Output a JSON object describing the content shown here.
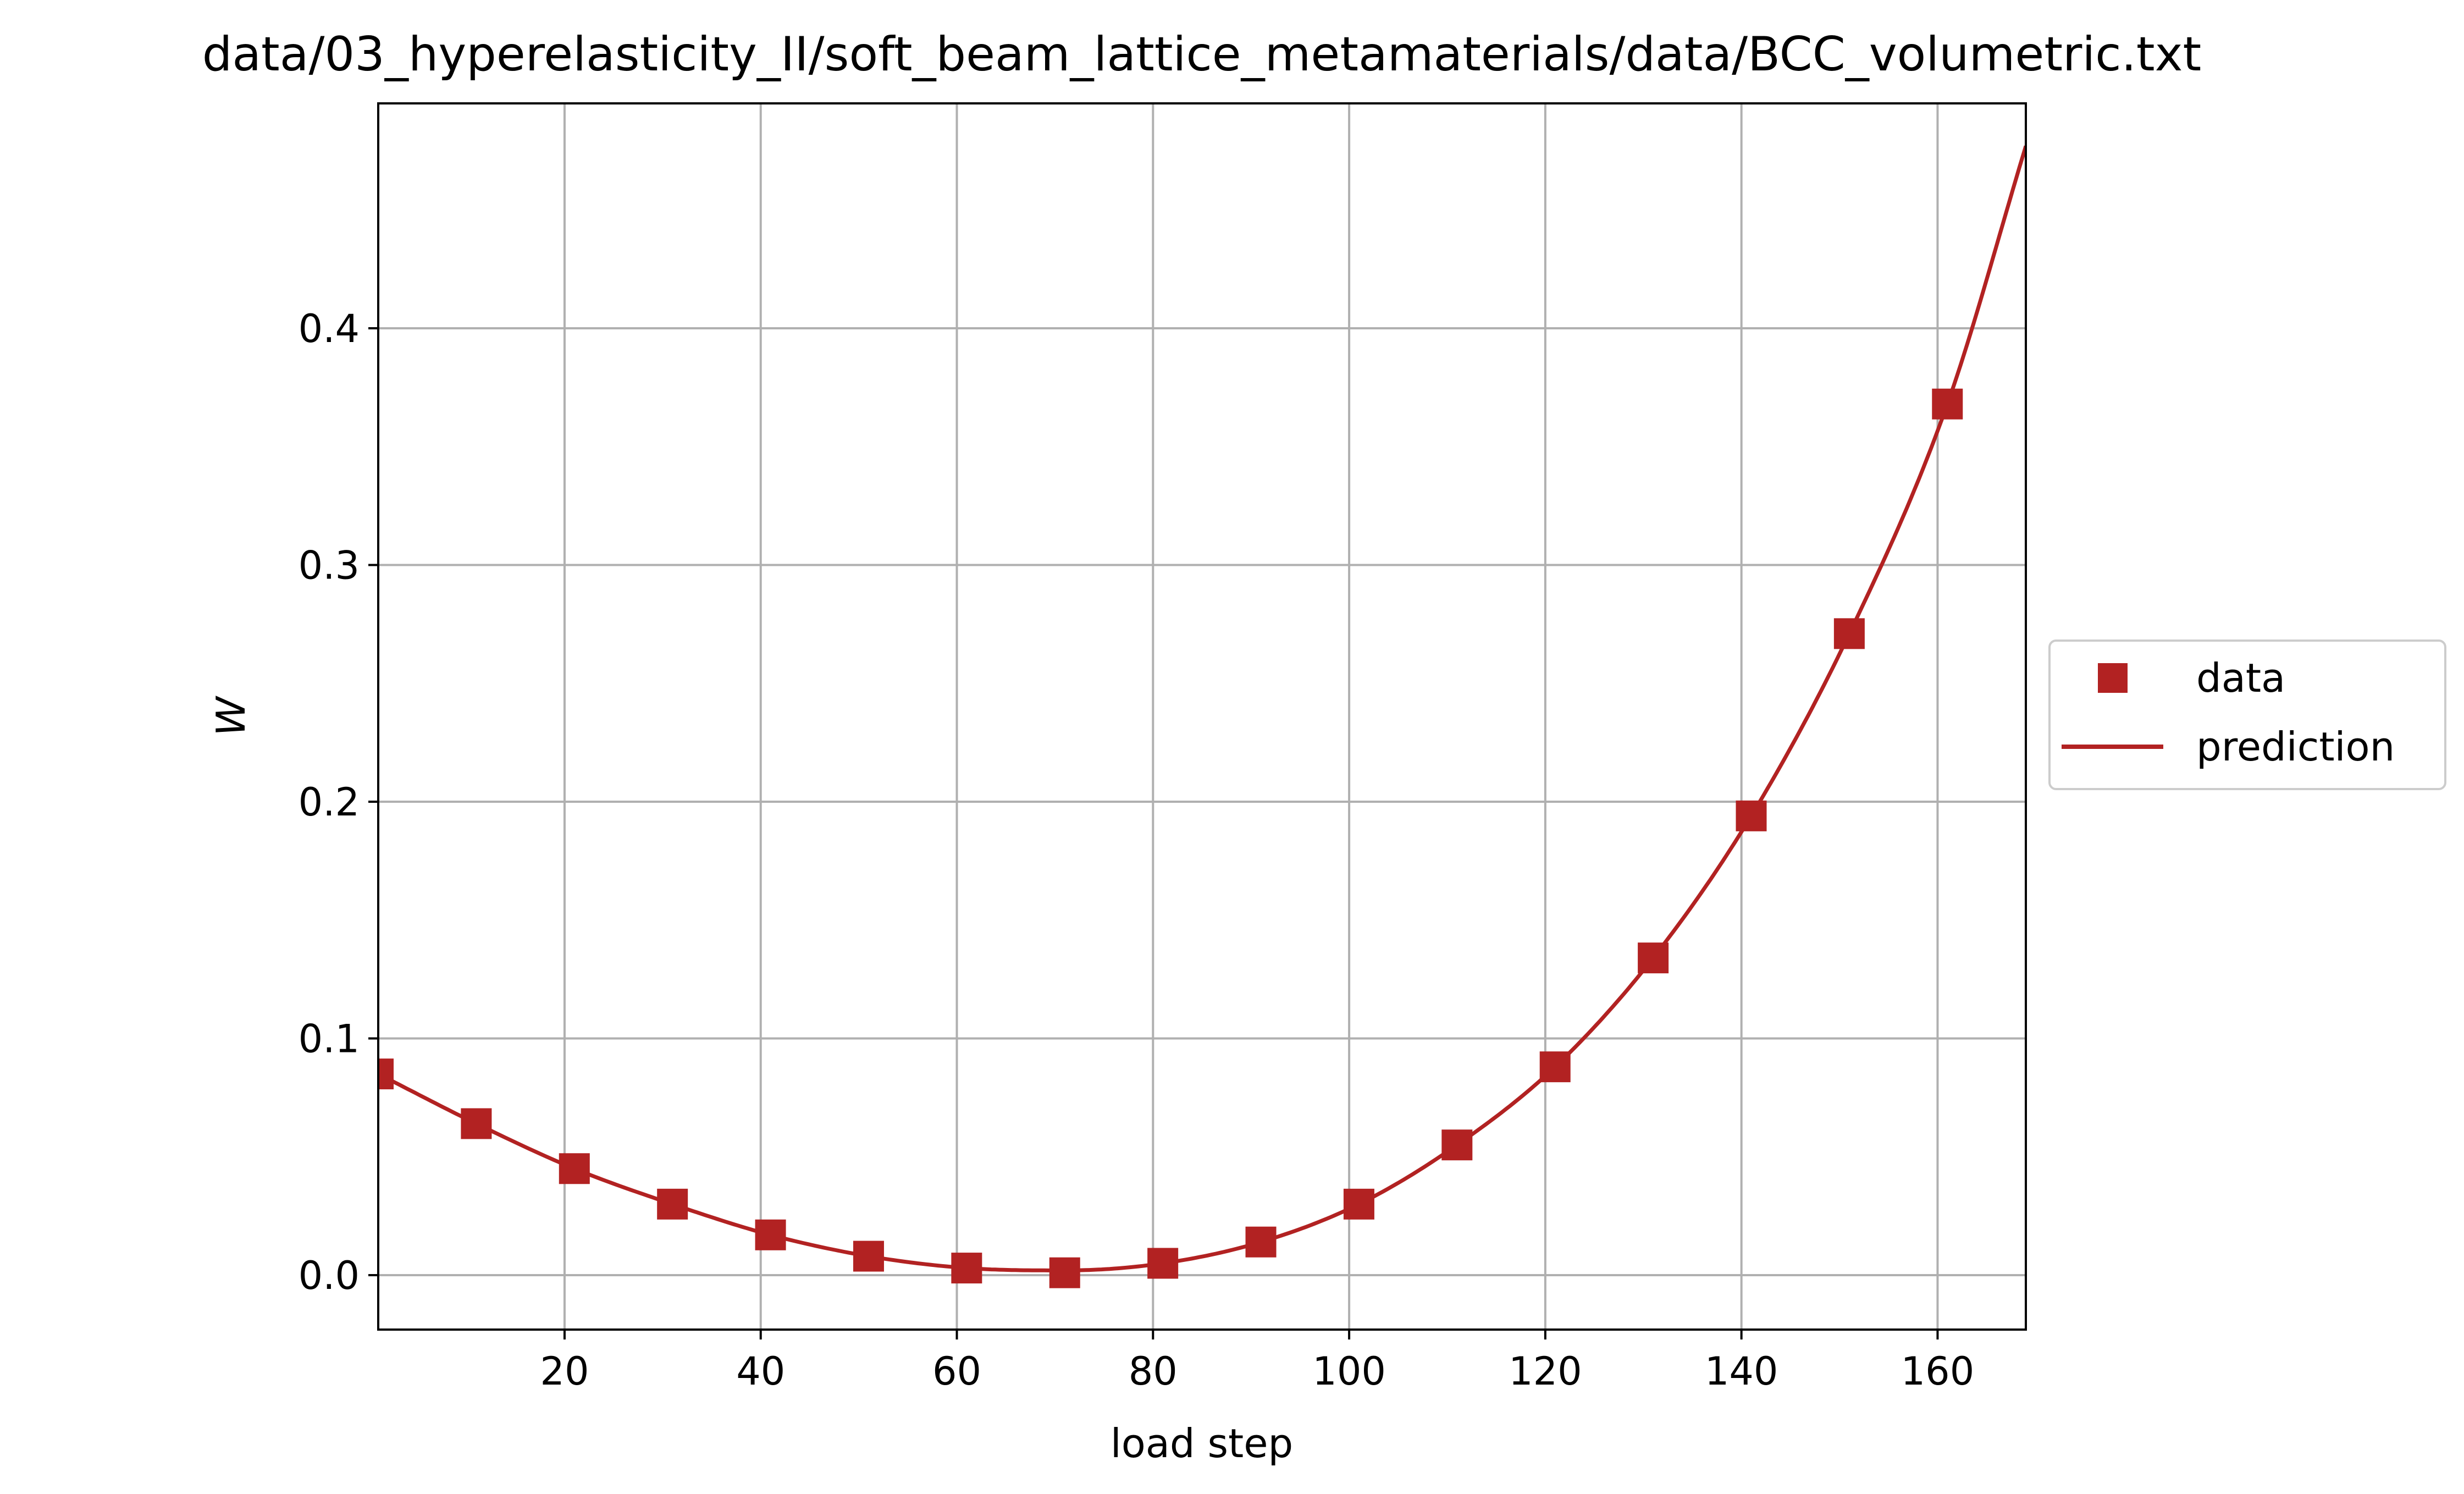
{
  "chart_data": {
    "type": "line",
    "title": "data/03_hyperelasticity_II/soft_beam_lattice_metamaterials/data/BCC_volumetric.txt",
    "xlabel": "load step",
    "ylabel": "W",
    "xlim": [
      1,
      169
    ],
    "ylim": [
      -0.023,
      0.495
    ],
    "xticks": [
      20,
      40,
      60,
      80,
      100,
      120,
      140,
      160
    ],
    "yticks": [
      0.0,
      0.1,
      0.2,
      0.3,
      0.4
    ],
    "ytick_labels": [
      "0.0",
      "0.1",
      "0.2",
      "0.3",
      "0.4"
    ],
    "grid": true,
    "legend_placement": "outside right, center",
    "color": "#B22222",
    "series": [
      {
        "name": "data",
        "style": "square markers",
        "x": [
          1,
          11,
          21,
          31,
          41,
          51,
          61,
          71,
          81,
          91,
          101,
          111,
          121,
          131,
          141,
          151,
          161
        ],
        "y": [
          0.085,
          0.064,
          0.045,
          0.03,
          0.017,
          0.008,
          0.003,
          0.001,
          0.005,
          0.014,
          0.03,
          0.055,
          0.088,
          0.134,
          0.194,
          0.271,
          0.368
        ]
      },
      {
        "name": "prediction",
        "style": "solid line",
        "x": [
          1,
          11,
          21,
          31,
          41,
          51,
          61,
          71,
          81,
          91,
          101,
          111,
          121,
          131,
          141,
          151,
          161,
          169
        ],
        "y": [
          0.085,
          0.064,
          0.045,
          0.03,
          0.017,
          0.008,
          0.003,
          0.002,
          0.005,
          0.014,
          0.03,
          0.055,
          0.088,
          0.134,
          0.194,
          0.271,
          0.368,
          0.477
        ]
      }
    ]
  }
}
